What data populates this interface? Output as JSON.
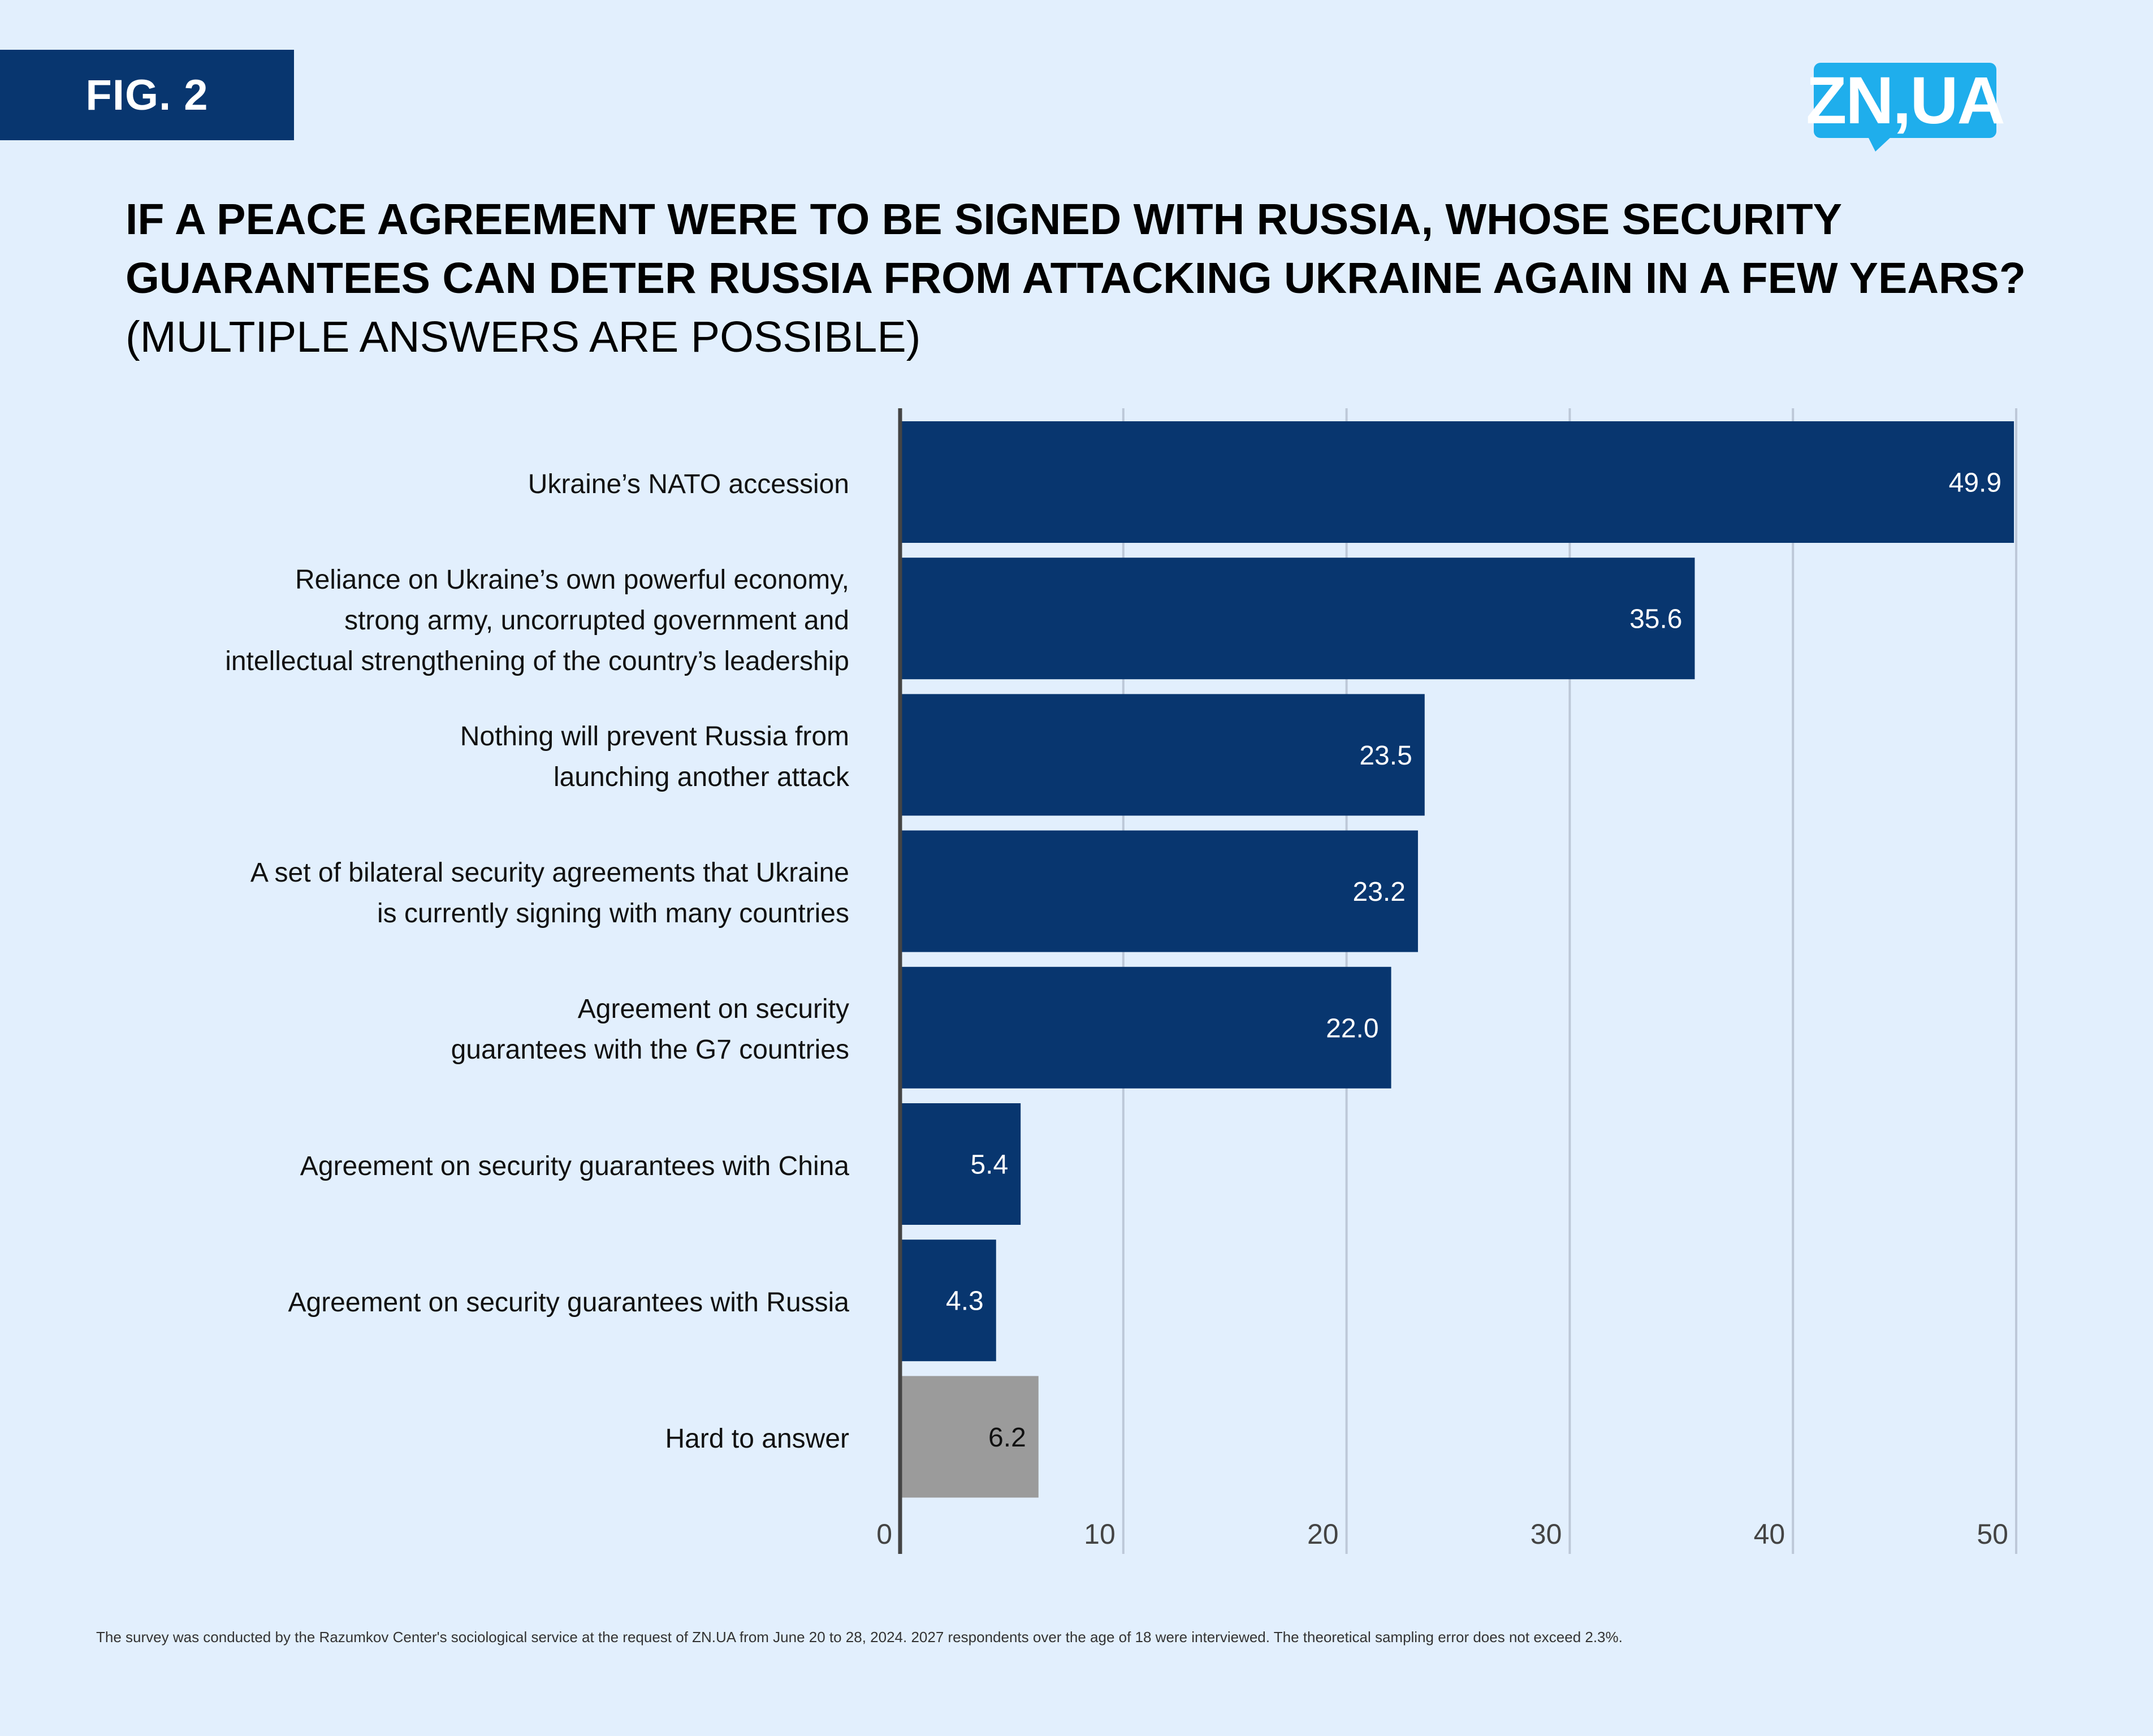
{
  "badge": {
    "label": "FIG. 2"
  },
  "logo": {
    "text": "ZN,UA",
    "color": "#1FAEEC"
  },
  "title": {
    "bold": "IF A PEACE AGREEMENT WERE TO BE SIGNED WITH RUSSIA, WHOSE SECURITY GUARANTEES CAN DETER RUSSIA FROM ATTACKING UKRAINE AGAIN IN A FEW YEARS?",
    "light": " (MULTIPLE ANSWERS ARE POSSIBLE)"
  },
  "footnote": "The survey was conducted by the Razumkov Center's sociological service at the request of ZN.UA from June 20 to 28, 2024. 2027 respondents over the age of 18 were interviewed. The theoretical sampling error does not exceed 2.3%.",
  "colors": {
    "primary_bar": "#08366F",
    "other_bar": "#9B9B9B",
    "background": "#E2EFFD",
    "grid": "#BDC8D8",
    "axis": "#444444"
  },
  "chart_data": {
    "type": "bar",
    "orientation": "horizontal",
    "title": "IF A PEACE AGREEMENT WERE TO BE SIGNED WITH RUSSIA, WHOSE SECURITY GUARANTEES CAN DETER RUSSIA FROM ATTACKING UKRAINE AGAIN IN A FEW YEARS? (MULTIPLE ANSWERS ARE POSSIBLE)",
    "xlabel": "",
    "ylabel": "",
    "xlim": [
      0,
      50
    ],
    "xticks": [
      0,
      10,
      20,
      30,
      40,
      50
    ],
    "grid": true,
    "categories": [
      [
        "Ukraine’s NATO accession"
      ],
      [
        "Reliance on Ukraine’s own powerful economy,",
        "strong army, uncorrupted government and",
        "intellectual strengthening of the country’s leadership"
      ],
      [
        "Nothing will prevent Russia from",
        "launching another attack"
      ],
      [
        "A set of bilateral security agreements that Ukraine",
        "is currently signing with many countries"
      ],
      [
        "Agreement on security",
        "guarantees with the G7 countries"
      ],
      [
        "Agreement on security guarantees with China"
      ],
      [
        "Agreement on security guarantees with Russia"
      ],
      [
        "Hard to answer"
      ]
    ],
    "values": [
      49.9,
      35.6,
      23.5,
      23.2,
      22.0,
      5.4,
      4.3,
      6.2
    ],
    "value_labels": [
      "49.9",
      "35.6",
      "23.5",
      "23.2",
      "22.0",
      "5.4",
      "4.3",
      "6.2"
    ],
    "bar_kinds": [
      "primary",
      "primary",
      "primary",
      "primary",
      "primary",
      "primary",
      "primary",
      "other"
    ]
  }
}
